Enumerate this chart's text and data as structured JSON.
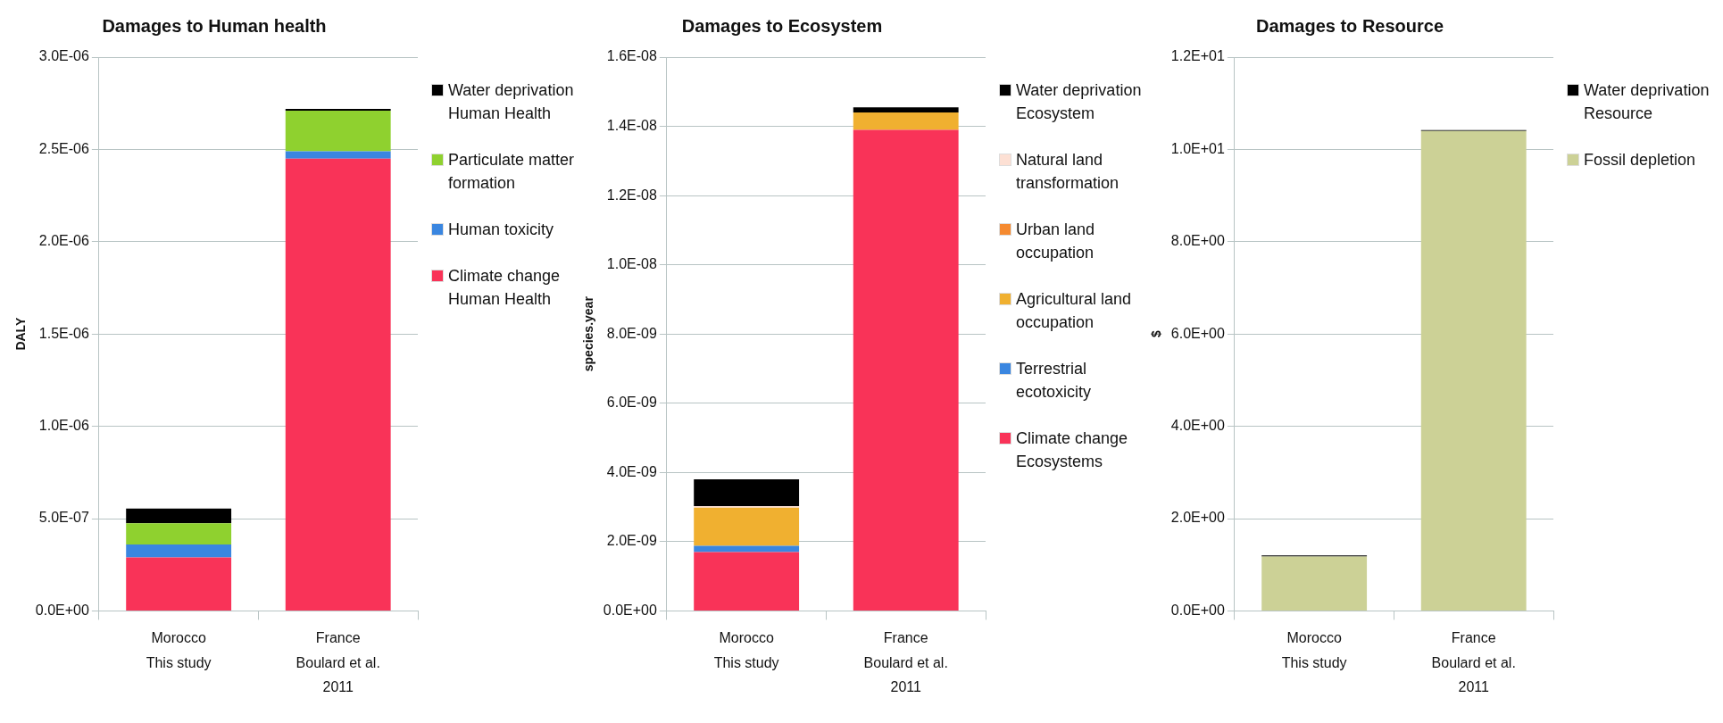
{
  "chart_data": [
    {
      "type": "bar",
      "title": "Damages to Human health",
      "ylabel": "DALY",
      "stacked": true,
      "grid": "y",
      "legend": "right",
      "categories": [
        "Morocco\nThis study",
        "France\nBoulard et al.\n2011"
      ],
      "ylim": [
        0,
        3e-06
      ],
      "yticks": [
        {
          "value": 0,
          "label": "0.0E+00"
        },
        {
          "value": 5e-07,
          "label": "5.0E-07"
        },
        {
          "value": 1e-06,
          "label": "1.0E-06"
        },
        {
          "value": 1.5e-06,
          "label": "1.5E-06"
        },
        {
          "value": 2e-06,
          "label": "2.0E-06"
        },
        {
          "value": 2.5e-06,
          "label": "2.5E-06"
        },
        {
          "value": 3e-06,
          "label": "3.0E-06"
        }
      ],
      "series": [
        {
          "name": "Climate change Human Health",
          "color": "#f93358",
          "values": [
            2.9e-07,
            2.45e-06
          ]
        },
        {
          "name": "Human toxicity",
          "color": "#3a86e0",
          "values": [
            7e-08,
            4e-08
          ]
        },
        {
          "name": "Particulate matter formation",
          "color": "#8fd12f",
          "values": [
            1.15e-07,
            2.2e-07
          ]
        },
        {
          "name": "Water deprivation Human Health",
          "color": "#000000",
          "values": [
            8e-08,
            1e-08
          ]
        }
      ]
    },
    {
      "type": "bar",
      "title": "Damages to Ecosystem",
      "ylabel": "species.year",
      "stacked": true,
      "grid": "y",
      "legend": "right",
      "categories": [
        "Morocco\nThis study",
        "France\nBoulard et al.\n2011"
      ],
      "ylim": [
        0,
        1.6e-08
      ],
      "yticks": [
        {
          "value": 0,
          "label": "0.0E+00"
        },
        {
          "value": 2e-09,
          "label": "2.0E-09"
        },
        {
          "value": 4e-09,
          "label": "4.0E-09"
        },
        {
          "value": 6e-09,
          "label": "6.0E-09"
        },
        {
          "value": 8e-09,
          "label": "8.0E-09"
        },
        {
          "value": 1e-08,
          "label": "1.0E-08"
        },
        {
          "value": 1.2e-08,
          "label": "1.2E-08"
        },
        {
          "value": 1.4e-08,
          "label": "1.4E-08"
        },
        {
          "value": 1.6e-08,
          "label": "1.6E-08"
        }
      ],
      "series": [
        {
          "name": "Climate change Ecosystems",
          "color": "#f93358",
          "values": [
            1.7e-09,
            1.39e-08
          ]
        },
        {
          "name": "Terrestrial ecotoxicity",
          "color": "#3a86e0",
          "values": [
            1.8e-10,
            null
          ]
        },
        {
          "name": "Agricultural land occupation",
          "color": "#f0b030",
          "values": [
            1.1e-09,
            5e-10
          ]
        },
        {
          "name": "Urban land occupation",
          "color": "#f58a30",
          "values": [
            0,
            0
          ]
        },
        {
          "name": "Natural land transformation",
          "color": "#fde0d4",
          "values": [
            5e-11,
            0
          ]
        },
        {
          "name": "Water deprivation Ecosystem",
          "color": "#000000",
          "values": [
            7.7e-10,
            1.5e-10
          ]
        }
      ]
    },
    {
      "type": "bar",
      "title": "Damages to Resource",
      "ylabel": "$",
      "stacked": true,
      "grid": "y",
      "legend": "right",
      "categories": [
        "Morocco\nThis study",
        "France\nBoulard et al.\n2011"
      ],
      "ylim": [
        0,
        12
      ],
      "yticks": [
        {
          "value": 0,
          "label": "0.0E+00"
        },
        {
          "value": 2,
          "label": "2.0E+00"
        },
        {
          "value": 4,
          "label": "4.0E+00"
        },
        {
          "value": 6,
          "label": "6.0E+00"
        },
        {
          "value": 8,
          "label": "8.0E+00"
        },
        {
          "value": 10,
          "label": "1.0E+01"
        },
        {
          "value": 12,
          "label": "1.2E+01"
        }
      ],
      "series": [
        {
          "name": "Fossil depletion",
          "color": "#ccd196",
          "values": [
            1.18,
            10.4
          ]
        },
        {
          "name": "Water deprivation Resource",
          "color": "#000000",
          "values": [
            0.02,
            0.02
          ]
        }
      ]
    }
  ]
}
